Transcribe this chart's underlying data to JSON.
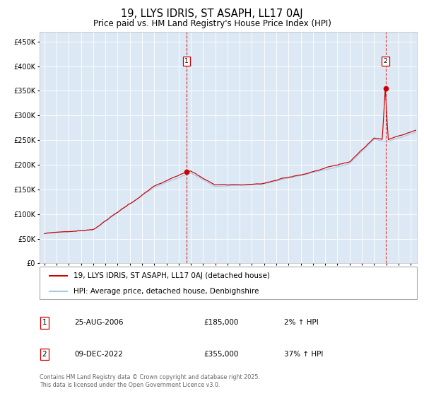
{
  "title1": "19, LLYS IDRIS, ST ASAPH, LL17 0AJ",
  "title2": "Price paid vs. HM Land Registry's House Price Index (HPI)",
  "bg_color": "#dce9f5",
  "plot_bg_color": "#dce9f5",
  "hpi_color": "#a8c8e8",
  "price_color": "#cc0000",
  "ylim": [
    0,
    470000
  ],
  "yticks": [
    0,
    50000,
    100000,
    150000,
    200000,
    250000,
    300000,
    350000,
    400000,
    450000
  ],
  "sale1_x": 2006.65,
  "sale1_price": 185000,
  "sale2_x": 2022.94,
  "sale2_price": 355000,
  "legend_line1": "19, LLYS IDRIS, ST ASAPH, LL17 0AJ (detached house)",
  "legend_line2": "HPI: Average price, detached house, Denbighshire",
  "footnote": "Contains HM Land Registry data © Crown copyright and database right 2025.\nThis data is licensed under the Open Government Licence v3.0.",
  "table_rows": [
    [
      "1",
      "25-AUG-2006",
      "£185,000",
      "2% ↑ HPI"
    ],
    [
      "2",
      "09-DEC-2022",
      "£355,000",
      "37% ↑ HPI"
    ]
  ]
}
